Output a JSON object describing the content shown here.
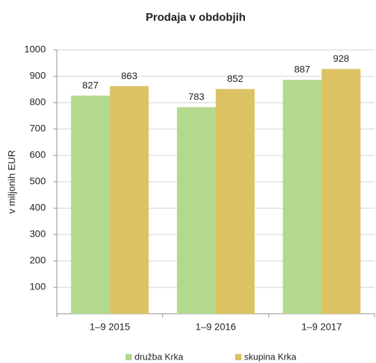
{
  "chart_data": {
    "type": "bar",
    "title": "Prodaja v obdobjih",
    "y_label": "v miljonih EUR",
    "categories": [
      "1–9 2015",
      "1–9 2016",
      "1–9 2017"
    ],
    "series": [
      {
        "name": "družba Krka",
        "color": "#b3d98f",
        "values": [
          827,
          783,
          887
        ]
      },
      {
        "name": "skupina Krka",
        "color": "#dcc262",
        "values": [
          863,
          852,
          928
        ]
      }
    ],
    "ylim": [
      0,
      1000
    ],
    "yticks": [
      100,
      200,
      300,
      400,
      500,
      600,
      700,
      800,
      900,
      1000
    ],
    "grid": true
  }
}
